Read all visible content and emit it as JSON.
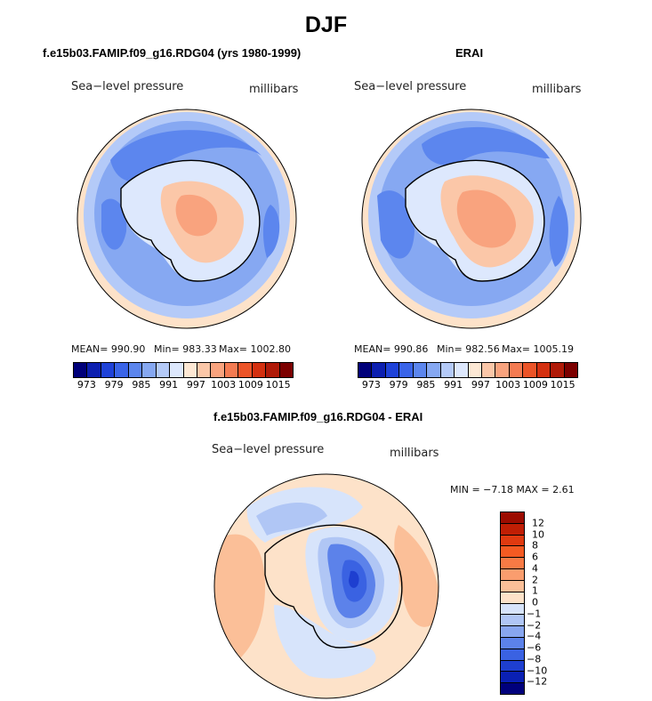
{
  "figure_title": "DJF",
  "panels": {
    "model": {
      "title": "f.e15b03.FAMIP.f09_g16.RDG04 (yrs 1980-1999)",
      "field": "Sea−level pressure",
      "units": "millibars",
      "mean_text": "MEAN= 990.90",
      "min_text": "Min= 983.33",
      "max_text": "Max= 1002.80"
    },
    "obs": {
      "title": "ERAI",
      "field": "Sea−level pressure",
      "units": "millibars",
      "mean_text": "MEAN= 990.86",
      "min_text": "Min= 982.56",
      "max_text": "Max= 1005.19"
    },
    "diff": {
      "title": "f.e15b03.FAMIP.f09_g16.RDG04 - ERAI",
      "field": "Sea−level pressure",
      "units": "millibars",
      "minmax_text": "MIN =  −7.18 MAX =    2.61"
    }
  },
  "colorbar_abs": {
    "tick_labels": [
      "973",
      "979",
      "985",
      "991",
      "997",
      "1003",
      "1009",
      "1015"
    ],
    "colors": [
      "#00007a",
      "#0c1fb0",
      "#1f42d8",
      "#3a64e8",
      "#5c86ee",
      "#86a8f2",
      "#b4caf8",
      "#dde8fd",
      "#fde8d4",
      "#fbc7a8",
      "#f9a37e",
      "#f47b52",
      "#ec5428",
      "#d43010",
      "#b01a08",
      "#7c0000"
    ]
  },
  "colorbar_diff": {
    "tick_labels": [
      "12",
      "10",
      "8",
      "6",
      "4",
      "2",
      "1",
      "0",
      "−1",
      "−2",
      "−4",
      "−6",
      "−8",
      "−10",
      "−12"
    ],
    "colors": [
      "#9c0c00",
      "#c01e04",
      "#e03a10",
      "#f45a22",
      "#f87a45",
      "#fa9d6e",
      "#fbbf98",
      "#fde2c9",
      "#d7e4fb",
      "#b0c6f5",
      "#88a6ef",
      "#5c82ea",
      "#3a62e2",
      "#1e3fd0",
      "#0a20b4",
      "#00007c"
    ]
  },
  "map_colors": {
    "ocean_ring": "#fde2c9",
    "ring_mid": "#b4caf8",
    "ring_deep": "#86a8f2",
    "low_core": "#5c86ee",
    "continent_edge": "#dde8fd",
    "continent_high": "#fbc7a8",
    "continent_peak": "#f9a37e",
    "diff_bg": "#fde2c9",
    "diff_pos": "#fbbf98",
    "diff_neg1": "#d7e4fb",
    "diff_neg2": "#b0c6f5",
    "diff_neg4": "#5c82ea",
    "diff_neg6": "#3a62e2",
    "diff_neg8": "#1e3fd0"
  }
}
